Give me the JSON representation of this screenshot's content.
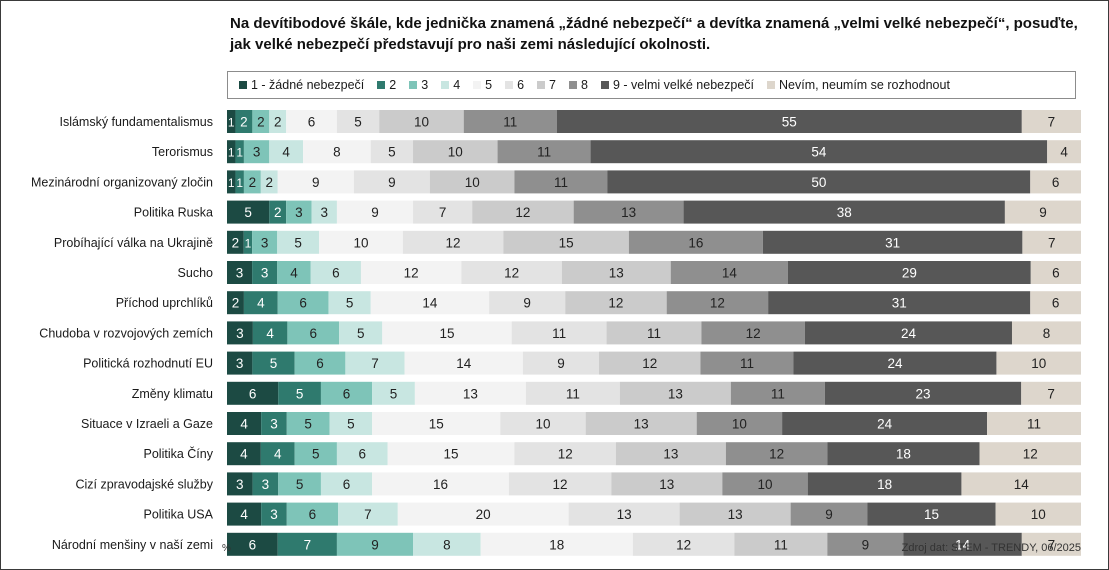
{
  "chart_data": {
    "type": "bar",
    "stacked": "horizontal-100",
    "title": "Na devítibodové škále, kde jednička znamená „žádné nebezpečí“ a devítka znamená „velmi velké nebezpečí“, posuďte, jak velké nebezpečí představují pro naši zemi následující okolnosti.",
    "unit_label": "%",
    "source": "Zdroj dat: STEM - TRENDY, 06/2025",
    "legend_position": "top",
    "categories": [
      "Islámský fundamentalismus",
      "Terorismus",
      "Mezinárodní organizovaný zločin",
      "Politika Ruska",
      "Probíhající válka na Ukrajině",
      "Sucho",
      "Příchod uprchlíků",
      "Chudoba v rozvojových zemích",
      "Politická rozhodnutí EU",
      "Změny klimatu",
      "Situace v Izraeli a Gaze",
      "Politika Číny",
      "Cizí zpravodajské služby",
      "Politika USA",
      "Národní menšiny v naší zemi"
    ],
    "series": [
      {
        "name": "1 - žádné nebezpečí",
        "color": "#1c4a43",
        "values": [
          1,
          1,
          1,
          5,
          2,
          3,
          2,
          3,
          3,
          6,
          4,
          4,
          3,
          4,
          6
        ]
      },
      {
        "name": "2",
        "color": "#2f7a6e",
        "values": [
          2,
          1,
          1,
          2,
          1,
          3,
          4,
          4,
          5,
          5,
          3,
          4,
          3,
          3,
          7
        ]
      },
      {
        "name": "3",
        "color": "#7ec4b8",
        "values": [
          2,
          3,
          2,
          3,
          3,
          4,
          6,
          6,
          6,
          6,
          5,
          5,
          5,
          6,
          9
        ]
      },
      {
        "name": "4",
        "color": "#c8e6e1",
        "values": [
          2,
          4,
          2,
          3,
          5,
          6,
          5,
          5,
          7,
          5,
          5,
          6,
          6,
          7,
          8
        ]
      },
      {
        "name": "5",
        "color": "#f3f3f3",
        "values": [
          6,
          8,
          9,
          9,
          10,
          12,
          14,
          15,
          14,
          13,
          15,
          15,
          16,
          20,
          18
        ]
      },
      {
        "name": "6",
        "color": "#e3e3e3",
        "values": [
          5,
          5,
          9,
          7,
          12,
          12,
          9,
          11,
          9,
          11,
          10,
          12,
          12,
          13,
          12
        ]
      },
      {
        "name": "7",
        "color": "#cbcbcb",
        "values": [
          10,
          10,
          10,
          12,
          15,
          13,
          12,
          11,
          12,
          13,
          13,
          13,
          13,
          13,
          11
        ]
      },
      {
        "name": "8",
        "color": "#8f8f8f",
        "values": [
          11,
          11,
          11,
          13,
          16,
          14,
          12,
          12,
          11,
          11,
          10,
          12,
          10,
          9,
          9
        ]
      },
      {
        "name": "9 - velmi velké nebezpečí",
        "color": "#575757",
        "values": [
          55,
          54,
          50,
          38,
          31,
          29,
          31,
          24,
          24,
          23,
          24,
          18,
          18,
          15,
          14
        ]
      },
      {
        "name": "Nevím, neumím se rozhodnout",
        "color": "#ddd6cc",
        "values": [
          7,
          4,
          6,
          9,
          7,
          6,
          6,
          8,
          10,
          7,
          11,
          12,
          14,
          10,
          7
        ]
      }
    ]
  }
}
